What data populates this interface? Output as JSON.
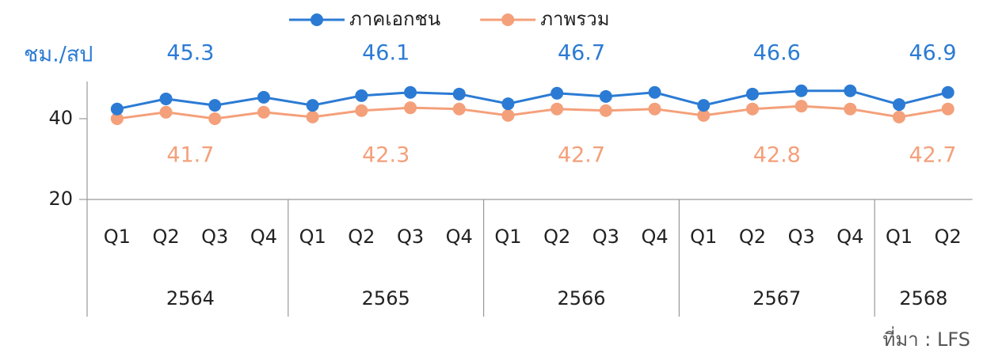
{
  "chart_data": {
    "type": "line",
    "unit_label": "ชม./สป",
    "source": "ที่มา : LFS",
    "categories": [
      "Q1",
      "Q2",
      "Q3",
      "Q4",
      "Q1",
      "Q2",
      "Q3",
      "Q4",
      "Q1",
      "Q2",
      "Q3",
      "Q4",
      "Q1",
      "Q2",
      "Q3",
      "Q4",
      "Q1",
      "Q2"
    ],
    "category_groups": [
      {
        "label": "2564",
        "size": 4
      },
      {
        "label": "2565",
        "size": 4
      },
      {
        "label": "2566",
        "size": 4
      },
      {
        "label": "2567",
        "size": 4
      },
      {
        "label": "2568",
        "size": 2
      }
    ],
    "series": [
      {
        "name": "ภาคเอกชน",
        "color": "#2b7bd4",
        "values": [
          42.4,
          44.9,
          43.3,
          45.3,
          43.3,
          45.7,
          46.5,
          46.1,
          43.7,
          46.3,
          45.5,
          46.5,
          43.3,
          46.1,
          46.9,
          46.9,
          43.5,
          46.5
        ],
        "group_labels": [
          45.3,
          46.1,
          46.7,
          46.6,
          46.9
        ]
      },
      {
        "name": "ภาพรวม",
        "color": "#f4a07a",
        "values": [
          40.0,
          41.6,
          40.0,
          41.6,
          40.4,
          42.0,
          42.7,
          42.4,
          40.8,
          42.4,
          42.0,
          42.4,
          40.8,
          42.4,
          43.1,
          42.4,
          40.4,
          42.4
        ],
        "group_labels": [
          41.7,
          42.3,
          42.7,
          42.8,
          42.7
        ]
      }
    ],
    "ylim": [
      20,
      49.2
    ],
    "yticks": [
      20,
      40
    ],
    "legend": "top"
  }
}
